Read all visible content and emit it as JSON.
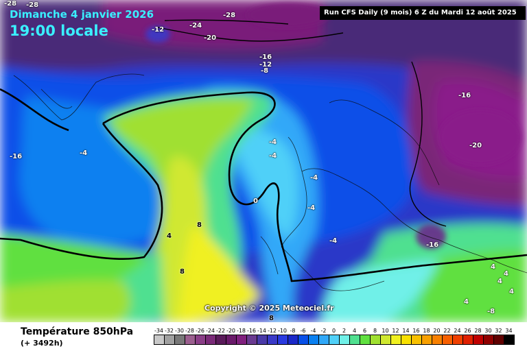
{
  "header": {
    "date": "Dimanche 4 janvier 2026",
    "time": "19:00 locale",
    "run_info": "Run CFS Daily (9 mois) 6 Z du Mardi 12 août 2025"
  },
  "copyright": "Copyright © 2025 Meteociel.fr",
  "footer": {
    "variable": "Température 850hPa",
    "forecast_hours": "(+ 3492h)"
  },
  "scale": {
    "values": [
      "-34",
      "-32",
      "-30",
      "-28",
      "-26",
      "-24",
      "-22",
      "-20",
      "-18",
      "-16",
      "-14",
      "-12",
      "-10",
      "-8",
      "-6",
      "-4",
      "-2",
      "0",
      "2",
      "4",
      "6",
      "8",
      "10",
      "12",
      "14",
      "16",
      "18",
      "20",
      "22",
      "24",
      "26",
      "28",
      "30",
      "32",
      "34"
    ],
    "colors": [
      "#c8c8c8",
      "#a0a0a0",
      "#787878",
      "#9b5f8f",
      "#8a3e87",
      "#7a2a78",
      "#5a1a5a",
      "#6a1a6a",
      "#80207e",
      "#6a3a90",
      "#4a3aa8",
      "#3a3ac8",
      "#2a3ae0",
      "#1a28c8",
      "#0850e8",
      "#0a80f0",
      "#30a8f8",
      "#50d0f8",
      "#70f0e8",
      "#50e090",
      "#60e040",
      "#a0e030",
      "#d0e830",
      "#f0f020",
      "#f8e000",
      "#f8c000",
      "#f8a000",
      "#f88000",
      "#f86000",
      "#f04000",
      "#e02000",
      "#c00000",
      "#900000",
      "#600000",
      "#000000"
    ]
  },
  "isotherms": [
    "-28",
    "-28",
    "-28",
    "-12",
    "-24",
    "-20",
    "-16",
    "-12",
    "-8",
    "-16",
    "-20",
    "-16",
    "-4",
    "-4",
    "-4",
    "-4",
    "-4",
    "-4",
    "0",
    "8",
    "4",
    "8",
    "-16",
    "4",
    "4",
    "4",
    "4",
    "4",
    "-8",
    "8"
  ]
}
